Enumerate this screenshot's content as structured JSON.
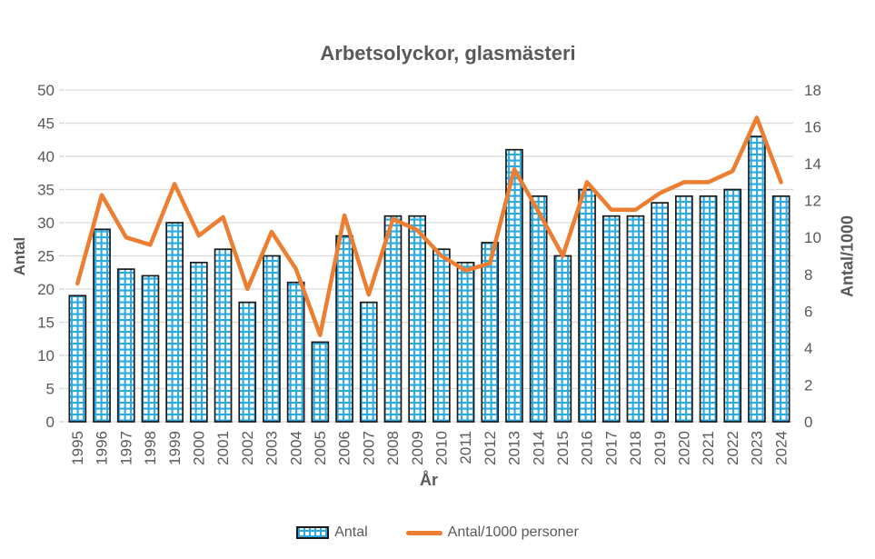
{
  "title": "Arbetsolyckor, glasmästeri",
  "legend": {
    "bar_label": "Antal",
    "line_label": "Antal/1000 personer"
  },
  "axes": {
    "x_title": "År",
    "y_left_title": "Antal",
    "y_right_title": "Antal/1000",
    "y_left": {
      "min": 0,
      "max": 50,
      "step": 5
    },
    "y_right": {
      "min": 0,
      "max": 18,
      "step": 2
    }
  },
  "colors": {
    "bar_pattern_blue": "#2BA9E0",
    "bar_border": "#1a1a1a",
    "line_orange": "#ED7D31",
    "gridline": "#D9D9D9",
    "tick_text": "#595959",
    "title_text": "#595959"
  },
  "chart_data": {
    "type": "combo",
    "title": "Arbetsolyckor, glasmästeri",
    "xlabel": "År",
    "ylabel_left": "Antal",
    "ylabel_right": "Antal/1000",
    "ylim_left": [
      0,
      50
    ],
    "ylim_right": [
      0,
      18
    ],
    "grid": true,
    "legend_position": "bottom",
    "categories": [
      "1995",
      "1996",
      "1997",
      "1998",
      "1999",
      "2000",
      "2001",
      "2002",
      "2003",
      "2004",
      "2005",
      "2006",
      "2007",
      "2008",
      "2009",
      "2010",
      "2011",
      "2012",
      "2013",
      "2014",
      "2015",
      "2016",
      "2017",
      "2018",
      "2019",
      "2020",
      "2021",
      "2022",
      "2023",
      "2024"
    ],
    "series": [
      {
        "name": "Antal",
        "type": "bar",
        "axis": "left",
        "values": [
          19,
          29,
          23,
          22,
          30,
          24,
          26,
          18,
          25,
          21,
          12,
          28,
          18,
          31,
          31,
          26,
          24,
          27,
          41,
          34,
          25,
          35,
          31,
          31,
          33,
          34,
          34,
          35,
          43,
          34
        ]
      },
      {
        "name": "Antal/1000 personer",
        "type": "line",
        "axis": "right",
        "values": [
          7.5,
          12.3,
          10.0,
          9.6,
          12.9,
          10.1,
          11.1,
          7.2,
          10.3,
          8.3,
          4.7,
          11.2,
          6.9,
          11.0,
          10.4,
          9.0,
          8.2,
          8.6,
          13.7,
          11.4,
          9.0,
          13.0,
          11.5,
          11.5,
          12.4,
          13.0,
          13.0,
          13.6,
          16.5,
          13.0
        ]
      }
    ]
  }
}
